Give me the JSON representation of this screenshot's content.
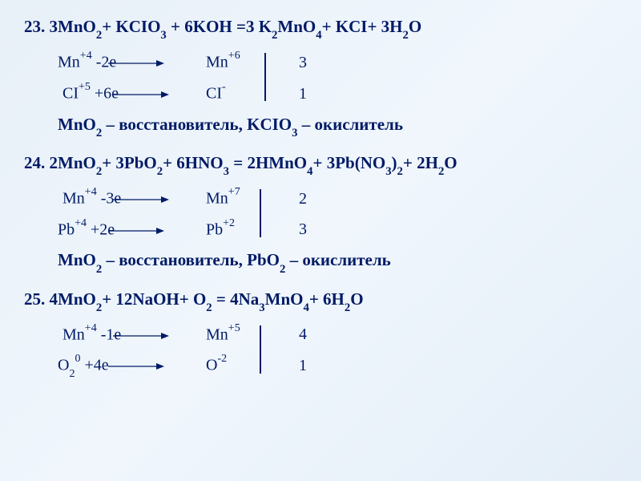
{
  "text_color": "#001a66",
  "background_gradient": [
    "#e8f0f8",
    "#f0f6fc",
    "#e4eef8"
  ],
  "font_family": "Times New Roman",
  "problems": [
    {
      "number": "23.",
      "equation_html": "3MnO<sub>2</sub>+ KCIO<sub>3</sub> + 6KOH =3 K<sub>2</sub>MnO<sub>4</sub>+ KCI+ 3H<sub>2</sub>O",
      "half1": {
        "left": "Mn<sup>+4</sup>  -2e",
        "right": "Mn<sup>+6</sup>",
        "coef": "3"
      },
      "half2": {
        "left": "CI<sup>+5</sup>  +6e",
        "right": "CI<sup>-</sup>",
        "coef": "1"
      },
      "note_html": "MnO<sub>2</sub> – восстановитель, KCIO<sub>3</sub> – окислитель"
    },
    {
      "number": "24.",
      "equation_html": "2MnO<sub>2</sub>+ 3PbO<sub>2</sub>+ 6HNO<sub>3</sub> = 2HMnO<sub>4</sub>+ 3Pb(NO<sub>3</sub>)<sub>2</sub>+ 2H<sub>2</sub>O",
      "half1": {
        "left": "Mn<sup>+4</sup>  -3e",
        "right": "Mn<sup>+7</sup>",
        "coef": "2"
      },
      "half2": {
        "left": "Pb<sup>+4</sup>  +2e",
        "right": "Pb<sup>+2</sup>",
        "coef": "3"
      },
      "note_html": "MnO<sub>2</sub> – восстановитель,  PbO<sub>2</sub> – окислитель"
    },
    {
      "number": "25.",
      "equation_html": "4MnO<sub>2</sub>+ 12NaOH+ O<sub>2</sub> = 4Na<sub>3</sub>MnO<sub>4</sub>+ 6H<sub>2</sub>O",
      "half1": {
        "left": "Mn<sup>+4</sup>  -1e",
        "right": "Mn<sup>+5</sup>",
        "coef": "4"
      },
      "half2": {
        "left": "O<sub>2</sub><sup>0</sup>  +4e",
        "right": "O<sup>-2</sup>",
        "coef": "1"
      },
      "note_html": ""
    }
  ]
}
